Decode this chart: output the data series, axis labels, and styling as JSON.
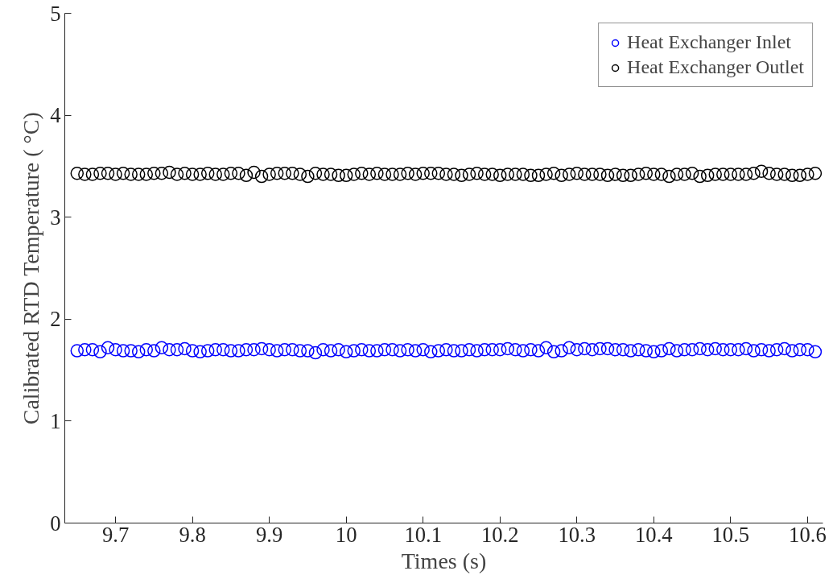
{
  "chart_data": {
    "type": "scatter",
    "xlabel": "Times (s)",
    "ylabel": "Calibrated RTD Temperature ( °C)",
    "x": [
      9.65,
      9.66,
      9.67,
      9.68,
      9.69,
      9.7,
      9.71,
      9.72,
      9.73,
      9.74,
      9.75,
      9.76,
      9.77,
      9.78,
      9.79,
      9.8,
      9.81,
      9.82,
      9.83,
      9.84,
      9.85,
      9.86,
      9.87,
      9.88,
      9.89,
      9.9,
      9.91,
      9.92,
      9.93,
      9.94,
      9.95,
      9.96,
      9.97,
      9.98,
      9.99,
      10.0,
      10.01,
      10.02,
      10.03,
      10.04,
      10.05,
      10.06,
      10.07,
      10.08,
      10.09,
      10.1,
      10.11,
      10.12,
      10.13,
      10.14,
      10.15,
      10.16,
      10.17,
      10.18,
      10.19,
      10.2,
      10.21,
      10.22,
      10.23,
      10.24,
      10.25,
      10.26,
      10.27,
      10.28,
      10.29,
      10.3,
      10.31,
      10.32,
      10.33,
      10.34,
      10.35,
      10.36,
      10.37,
      10.38,
      10.39,
      10.4,
      10.41,
      10.42,
      10.43,
      10.44,
      10.45,
      10.46,
      10.47,
      10.48,
      10.49,
      10.5,
      10.51,
      10.52,
      10.53,
      10.54,
      10.55,
      10.56,
      10.57,
      10.58,
      10.59,
      10.6,
      10.61
    ],
    "series": [
      {
        "name": "Heat Exchanger Inlet",
        "color": "#0000ff",
        "values": [
          1.69,
          1.7,
          1.7,
          1.68,
          1.72,
          1.7,
          1.69,
          1.69,
          1.68,
          1.7,
          1.69,
          1.72,
          1.7,
          1.7,
          1.71,
          1.69,
          1.68,
          1.69,
          1.7,
          1.7,
          1.69,
          1.69,
          1.7,
          1.7,
          1.71,
          1.7,
          1.69,
          1.7,
          1.7,
          1.69,
          1.69,
          1.67,
          1.7,
          1.69,
          1.7,
          1.68,
          1.69,
          1.7,
          1.69,
          1.69,
          1.7,
          1.7,
          1.69,
          1.7,
          1.69,
          1.7,
          1.68,
          1.69,
          1.7,
          1.69,
          1.69,
          1.7,
          1.69,
          1.7,
          1.7,
          1.7,
          1.71,
          1.7,
          1.69,
          1.7,
          1.69,
          1.72,
          1.68,
          1.69,
          1.72,
          1.7,
          1.71,
          1.7,
          1.71,
          1.71,
          1.7,
          1.7,
          1.69,
          1.7,
          1.69,
          1.68,
          1.69,
          1.71,
          1.69,
          1.7,
          1.7,
          1.71,
          1.7,
          1.71,
          1.7,
          1.7,
          1.7,
          1.71,
          1.69,
          1.7,
          1.69,
          1.7,
          1.71,
          1.69,
          1.7,
          1.7,
          1.68
        ]
      },
      {
        "name": "Heat Exchanger Outlet",
        "color": "#000000",
        "values": [
          3.43,
          3.42,
          3.42,
          3.43,
          3.43,
          3.42,
          3.43,
          3.42,
          3.42,
          3.42,
          3.43,
          3.43,
          3.44,
          3.42,
          3.43,
          3.42,
          3.42,
          3.43,
          3.42,
          3.42,
          3.43,
          3.43,
          3.41,
          3.44,
          3.4,
          3.42,
          3.43,
          3.43,
          3.43,
          3.42,
          3.4,
          3.43,
          3.42,
          3.42,
          3.41,
          3.41,
          3.42,
          3.43,
          3.42,
          3.43,
          3.42,
          3.42,
          3.42,
          3.43,
          3.42,
          3.43,
          3.43,
          3.43,
          3.42,
          3.42,
          3.41,
          3.42,
          3.43,
          3.42,
          3.42,
          3.41,
          3.42,
          3.42,
          3.42,
          3.41,
          3.41,
          3.42,
          3.43,
          3.41,
          3.42,
          3.43,
          3.42,
          3.42,
          3.42,
          3.41,
          3.42,
          3.41,
          3.41,
          3.42,
          3.43,
          3.42,
          3.42,
          3.4,
          3.42,
          3.42,
          3.43,
          3.4,
          3.41,
          3.42,
          3.42,
          3.42,
          3.42,
          3.42,
          3.43,
          3.45,
          3.43,
          3.42,
          3.42,
          3.41,
          3.41,
          3.42,
          3.43
        ]
      }
    ],
    "xlim": [
      9.634,
      10.62
    ],
    "xticks": [
      9.7,
      9.8,
      9.9,
      10,
      10.1,
      10.2,
      10.3,
      10.4,
      10.5,
      10.6
    ],
    "ylim": [
      0,
      5
    ],
    "yticks": [
      0,
      1,
      2,
      3,
      4,
      5
    ],
    "marker": "circle",
    "grid": false,
    "legend": "top right"
  }
}
